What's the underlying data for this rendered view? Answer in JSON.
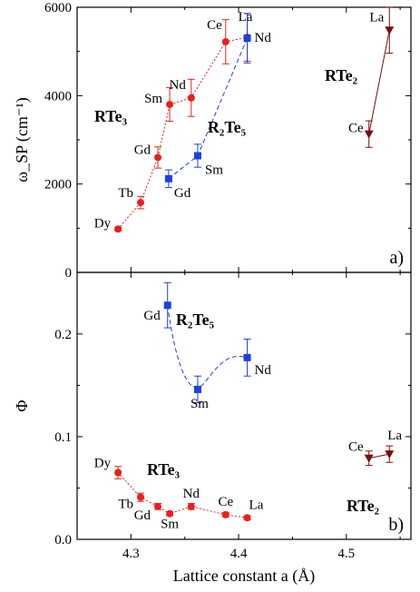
{
  "chart_data": [
    {
      "type": "scatter",
      "panel_label": "a)",
      "ylabel": "ω_SP (cm⁻¹)",
      "xlim": [
        4.25,
        4.56
      ],
      "ylim": [
        0,
        6000
      ],
      "yticks": [
        0,
        2000,
        4000,
        6000
      ],
      "series": [
        {
          "name": "RTe₃",
          "color": "#e4221d",
          "marker": "circle",
          "points": [
            {
              "label": "Dy",
              "x": 4.288,
              "y": 980,
              "err": 40
            },
            {
              "label": "Tb",
              "x": 4.309,
              "y": 1580,
              "err": 140
            },
            {
              "label": "Gd",
              "x": 4.325,
              "y": 2600,
              "err": 240
            },
            {
              "label": "Sm",
              "x": 4.336,
              "y": 3800,
              "err": 380
            },
            {
              "label": "Nd",
              "x": 4.356,
              "y": 3950,
              "err": 420
            },
            {
              "label": "Ce",
              "x": 4.388,
              "y": 5220,
              "err": 500
            },
            {
              "label": "La",
              "x": 4.408,
              "y": 5320,
              "err": 540
            }
          ]
        },
        {
          "name": "R₂Te₅",
          "color": "#1f3fe0",
          "marker": "square",
          "points": [
            {
              "label": "Gd",
              "x": 4.335,
              "y": 2120,
              "err": 200
            },
            {
              "label": "Sm",
              "x": 4.362,
              "y": 2640,
              "err": 260
            },
            {
              "label": "Nd",
              "x": 4.408,
              "y": 5300,
              "err": 560
            }
          ]
        },
        {
          "name": "RTe₂",
          "color": "#7a0e0e",
          "marker": "triangle-down",
          "points": [
            {
              "label": "Ce",
              "x": 4.521,
              "y": 3130,
              "err": 300
            },
            {
              "label": "La",
              "x": 4.54,
              "y": 5480,
              "err": 520
            }
          ]
        }
      ]
    },
    {
      "type": "scatter",
      "panel_label": "b)",
      "ylabel": "Φ",
      "xlabel": "Lattice constant a (Å)",
      "xlim": [
        4.25,
        4.56
      ],
      "ylim": [
        0.0,
        0.26
      ],
      "yticks": [
        "0.0",
        "0.1",
        "0.2"
      ],
      "xticks": [
        "4.3",
        "4.4",
        "4.5"
      ],
      "series": [
        {
          "name": "RTe₃",
          "color": "#e4221d",
          "marker": "circle",
          "points": [
            {
              "label": "Dy",
              "x": 4.288,
              "y": 0.065,
              "err": 0.006
            },
            {
              "label": "Tb",
              "x": 4.309,
              "y": 0.041,
              "err": 0.004
            },
            {
              "label": "Gd",
              "x": 4.325,
              "y": 0.032,
              "err": 0.003
            },
            {
              "label": "Sm",
              "x": 4.336,
              "y": 0.025,
              "err": 0.002
            },
            {
              "label": "Nd",
              "x": 4.356,
              "y": 0.032,
              "err": 0.003
            },
            {
              "label": "Ce",
              "x": 4.388,
              "y": 0.024,
              "err": 0.002
            },
            {
              "label": "La",
              "x": 4.408,
              "y": 0.021,
              "err": 0.002
            }
          ]
        },
        {
          "name": "R₂Te₅",
          "color": "#1f3fe0",
          "marker": "square",
          "points": [
            {
              "label": "Gd",
              "x": 4.334,
              "y": 0.228,
              "err": 0.022
            },
            {
              "label": "Sm",
              "x": 4.362,
              "y": 0.146,
              "err": 0.013
            },
            {
              "label": "Nd",
              "x": 4.408,
              "y": 0.177,
              "err": 0.018
            }
          ]
        },
        {
          "name": "RTe₂",
          "color": "#7a0e0e",
          "marker": "triangle-down",
          "points": [
            {
              "label": "Ce",
              "x": 4.521,
              "y": 0.079,
              "err": 0.007
            },
            {
              "label": "La",
              "x": 4.54,
              "y": 0.083,
              "err": 0.008
            }
          ]
        }
      ]
    }
  ]
}
